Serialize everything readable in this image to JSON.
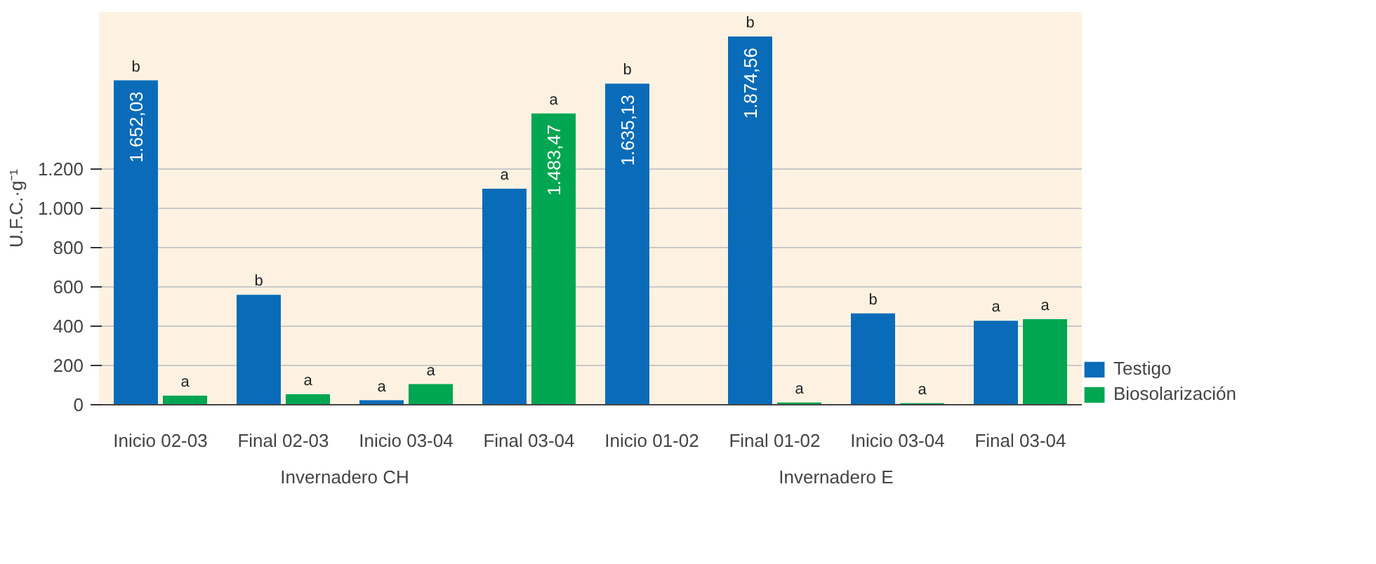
{
  "chart_data": {
    "type": "bar",
    "ylabel": "U.F.C.·g⁻¹",
    "categories": [
      "Inicio 02-03",
      "Final 02-03",
      "Inicio 03-04",
      "Final 03-04",
      "Inicio 01-02",
      "Final 01-02",
      "Inicio 03-04",
      "Final 03-04"
    ],
    "series": [
      {
        "name": "Testigo",
        "color": "#0a6cb8",
        "values": [
          1652.03,
          560,
          23,
          1100,
          1635.13,
          1874.56,
          465,
          428
        ],
        "value_labels": [
          "b",
          "b",
          "a",
          "a",
          "b",
          "b",
          "b",
          "a"
        ]
      },
      {
        "name": "Biosolarización",
        "color": "#00a651",
        "values": [
          46,
          54,
          105,
          1483.47,
          null,
          12,
          8,
          436
        ],
        "value_labels": [
          "a",
          "a",
          "a",
          "a",
          null,
          "a",
          "a",
          "a"
        ]
      }
    ],
    "ylim": [
      0,
      2000
    ],
    "yticks": [
      0,
      200,
      400,
      600,
      800,
      {
        "value": 1000,
        "label": "1.000"
      },
      {
        "value": 1200,
        "label": "1.200"
      }
    ],
    "annotations": [
      {
        "text": "1.652,03",
        "x": "Inicio 02-03",
        "y": 1652.03
      },
      {
        "text": "1.483,47",
        "x": "Final 03-04",
        "y": 1483.47
      },
      {
        "text": "1.635,13",
        "x": "Inicio 01-02",
        "y": 1635.13
      },
      {
        "text": "1.874,56",
        "x": "Final 01-02",
        "y": 1874.56
      },
      "Invernadero CH",
      "Invernadero E"
    ],
    "grid": "y",
    "legend": "bottom right"
  }
}
